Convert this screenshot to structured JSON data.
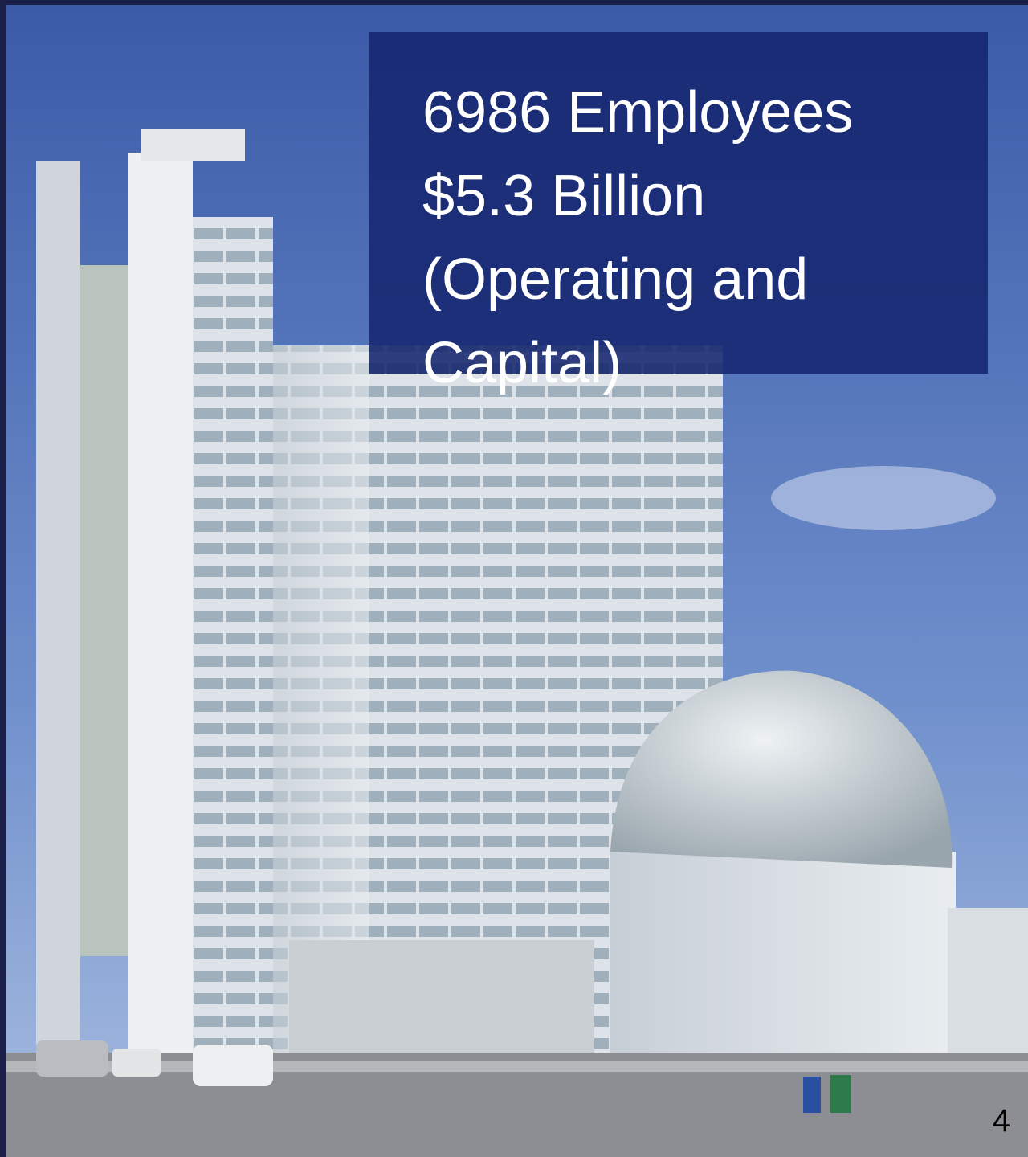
{
  "text_box": {
    "lines": [
      "6986 Employees",
      "$5.3 Billion",
      "(Operating and",
      "Capital)"
    ]
  },
  "slide_number": "4"
}
